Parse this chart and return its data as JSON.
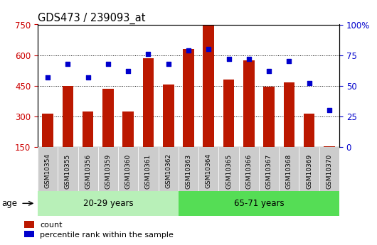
{
  "title": "GDS473 / 239093_at",
  "categories": [
    "GSM10354",
    "GSM10355",
    "GSM10356",
    "GSM10359",
    "GSM10360",
    "GSM10361",
    "GSM10362",
    "GSM10363",
    "GSM10364",
    "GSM10365",
    "GSM10366",
    "GSM10367",
    "GSM10368",
    "GSM10369",
    "GSM10370"
  ],
  "count_values": [
    315,
    450,
    325,
    435,
    325,
    585,
    455,
    630,
    750,
    480,
    575,
    445,
    465,
    315,
    155
  ],
  "percentile_values": [
    57,
    68,
    57,
    68,
    62,
    76,
    68,
    79,
    80,
    72,
    72,
    62,
    70,
    52,
    30
  ],
  "group1_label": "20-29 years",
  "group2_label": "65-71 years",
  "group1_count": 7,
  "group2_count": 8,
  "ylim_left": [
    150,
    750
  ],
  "ylim_right": [
    0,
    100
  ],
  "yticks_left": [
    150,
    300,
    450,
    600,
    750
  ],
  "yticks_right": [
    0,
    25,
    50,
    75,
    100
  ],
  "bar_color": "#bb1800",
  "dot_color": "#0000cc",
  "group1_bg": "#b8f0b8",
  "group2_bg": "#55dd55",
  "tick_label_color_left": "#cc0000",
  "tick_label_color_right": "#0000cc",
  "bar_width": 0.55,
  "legend_count_label": "count",
  "legend_pct_label": "percentile rank within the sample",
  "age_label": "age",
  "grid_lines": [
    300,
    450,
    600
  ],
  "xtick_bg": "#cccccc",
  "fig_bg": "#f0f0f0"
}
